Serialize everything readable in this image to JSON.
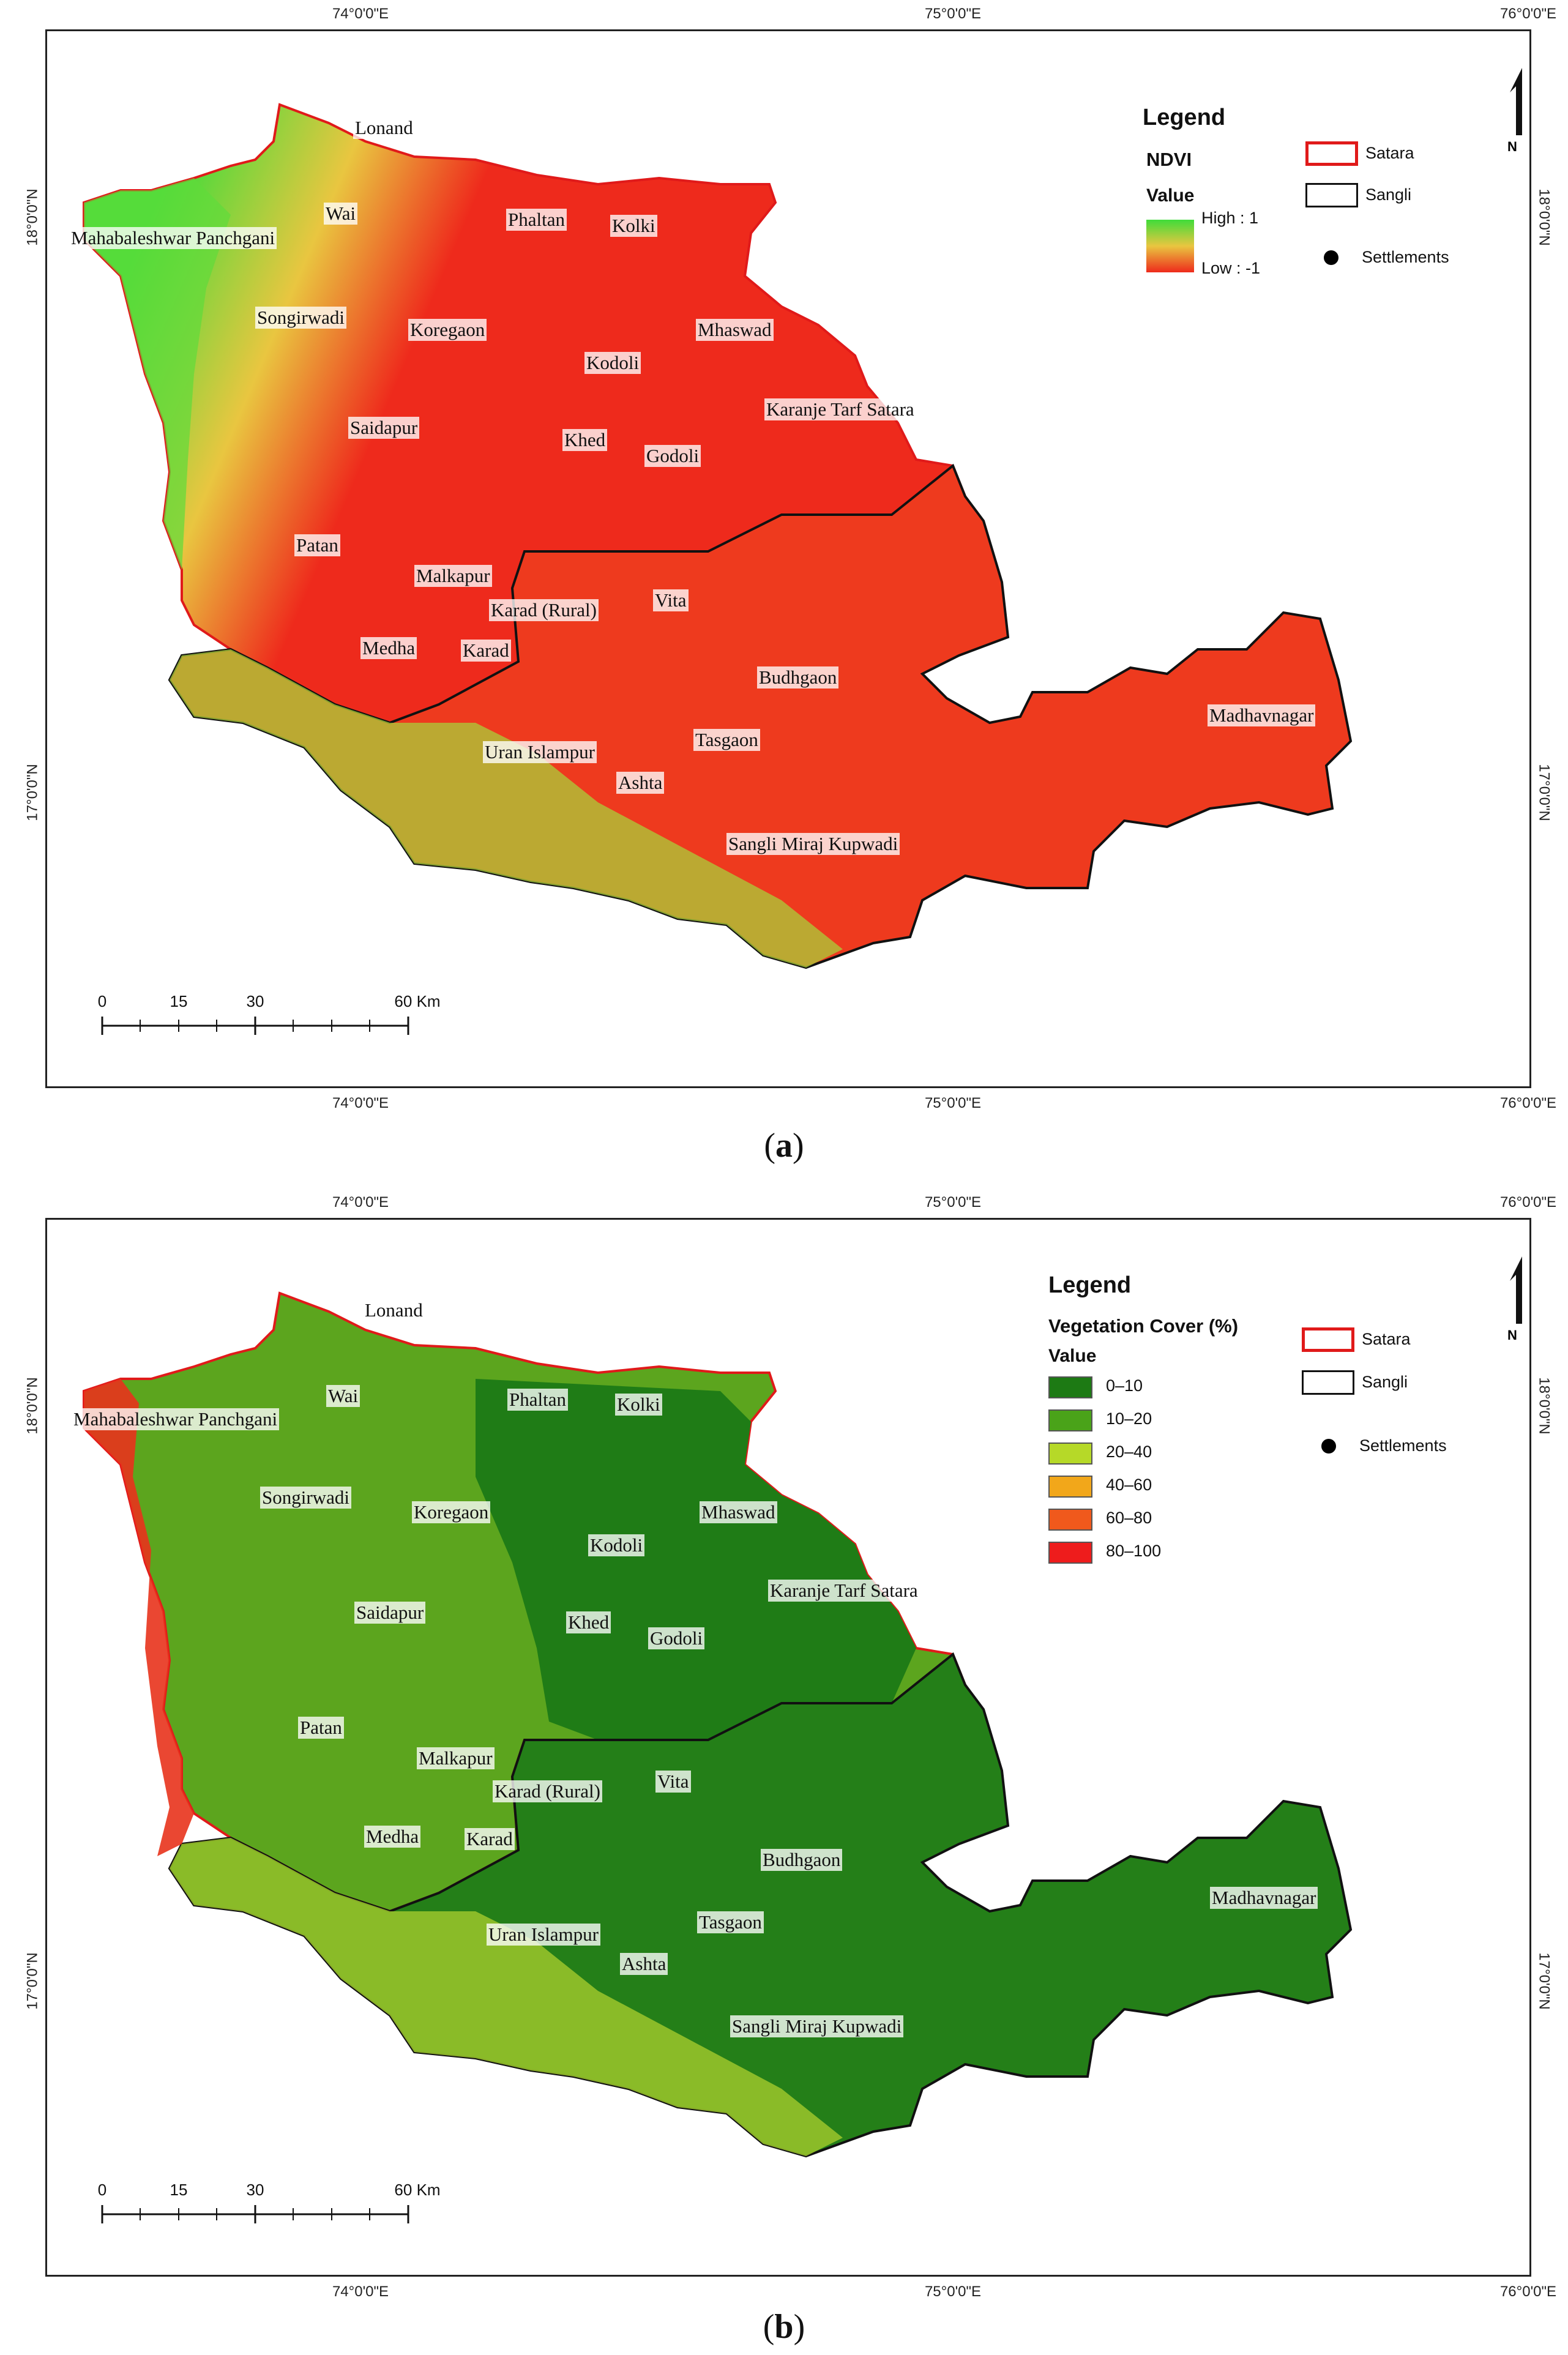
{
  "panels": {
    "a": {
      "caption_open": "(",
      "caption_letter": "a",
      "caption_close": ")",
      "legend": {
        "title": "Legend",
        "subtitle": "NDVI",
        "value_label": "Value",
        "high": "High : 1",
        "low": "Low : -1",
        "satara": "Satara",
        "sangli": "Sangli",
        "settlements": "Settlements"
      },
      "colors": {
        "high": "#3fdc3a",
        "mid": "#e9c640",
        "low": "#ee2a1c"
      }
    },
    "b": {
      "caption_open": "(",
      "caption_letter": "b",
      "caption_close": ")",
      "legend": {
        "title": "Legend",
        "subtitle": "Vegetation Cover (%)",
        "value_label": "Value",
        "classes": [
          {
            "label": "0–10",
            "color": "#1d7a14"
          },
          {
            "label": "10–20",
            "color": "#4aa319"
          },
          {
            "label": "20–40",
            "color": "#b6d928"
          },
          {
            "label": "40–60",
            "color": "#f2a71a"
          },
          {
            "label": "60–80",
            "color": "#f0591c"
          },
          {
            "label": "80–100",
            "color": "#ee1c1c"
          }
        ],
        "satara": "Satara",
        "sangli": "Sangli",
        "settlements": "Settlements"
      }
    }
  },
  "axes": {
    "top": [
      "74°0'0\"E",
      "75°0'0\"E",
      "76°0'0\"E"
    ],
    "bottom": [
      "74°0'0\"E",
      "75°0'0\"E",
      "76°0'0\"E"
    ],
    "left": [
      "18°0'0\"N",
      "17°0'0\"N"
    ],
    "right": [
      "18°0'0\"N",
      "17°0'0\"N"
    ]
  },
  "scale": {
    "ticks": [
      "0",
      "15",
      "30",
      "60 Km"
    ]
  },
  "north": "N",
  "places": {
    "lonand": "Lonand",
    "wai": "Wai",
    "mahabaleshwar": "Mahabaleshwar Panchgani",
    "phaltan": "Phaltan",
    "kolki": "Kolki",
    "songirwadi": "Songirwadi",
    "koregaon": "Koregaon",
    "mhaswad": "Mhaswad",
    "kodoli": "Kodoli",
    "karanje": "Karanje Tarf Satara",
    "saidapur": "Saidapur",
    "khed": "Khed",
    "godoli": "Godoli",
    "patan": "Patan",
    "malkapur": "Malkapur",
    "karad_rural": "Karad (Rural)",
    "vita": "Vita",
    "medha": "Medha",
    "karad": "Karad",
    "budhgaon": "Budhgaon",
    "madhavnagar": "Madhavnagar",
    "uran": "Uran Islampur",
    "tasgaon": "Tasgaon",
    "ashta": "Ashta",
    "sangli_miraj": "Sangli Miraj Kupwadi"
  }
}
